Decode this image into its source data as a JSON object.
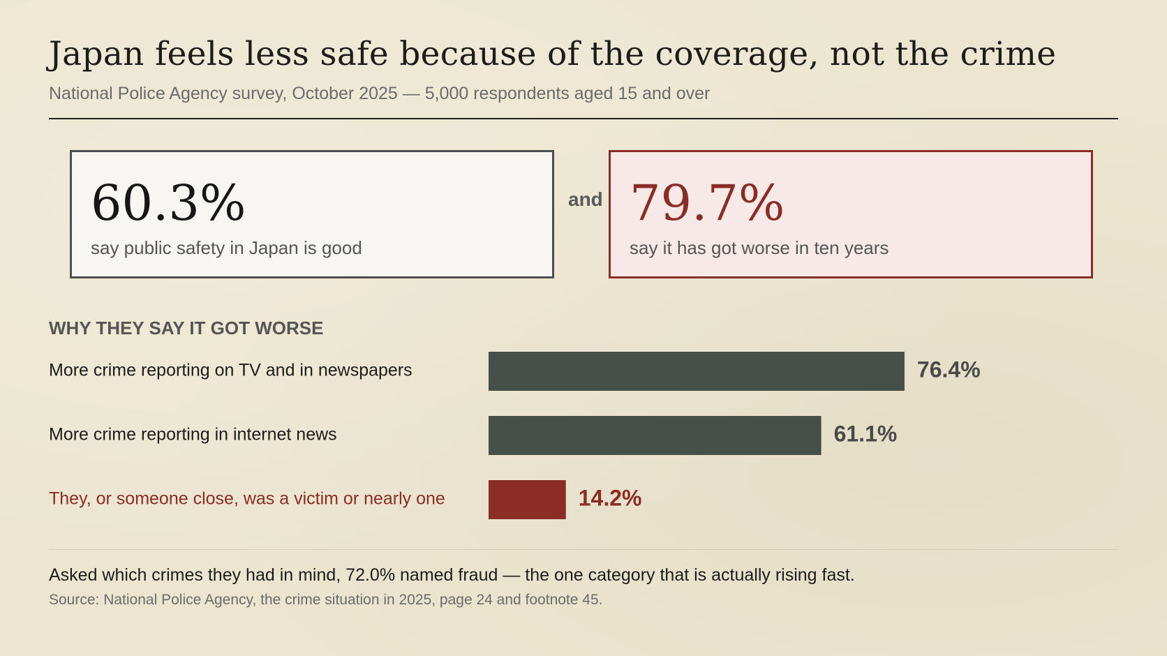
{
  "header": {
    "title": "Japan feels less safe because of the coverage, not the crime",
    "subtitle": "National Police Agency survey, October 2025 — 5,000 respondents aged 15 and over"
  },
  "stats": {
    "good": {
      "value": "60.3%",
      "label": "say public safety in Japan is good"
    },
    "connector": "and",
    "worse": {
      "value": "79.7%",
      "label": "say it has got worse in ten years"
    }
  },
  "colors": {
    "neutral_bar": "#474f4b",
    "highlight": "#8b2c26",
    "label_text": "#1c1c1c",
    "neutral_value": "#4a4a4a"
  },
  "chart_data": {
    "type": "bar",
    "orientation": "horizontal",
    "title": "WHY THEY SAY IT GOT WORSE",
    "categories": [
      "More crime reporting on TV and in newspapers",
      "More crime reporting in internet news",
      "They, or someone close, was a victim or nearly one"
    ],
    "values": [
      76.4,
      61.1,
      14.2
    ],
    "value_labels": [
      "76.4%",
      "61.1%",
      "14.2%"
    ],
    "highlighted": [
      false,
      false,
      true
    ],
    "unit": "%",
    "xlim": [
      0,
      100
    ],
    "grid": false
  },
  "footer": {
    "note": "Asked which crimes they had in mind, 72.0% named fraud — the one category that is actually rising fast.",
    "source": "Source: National Police Agency, the crime situation in 2025, page 24 and footnote 45."
  }
}
